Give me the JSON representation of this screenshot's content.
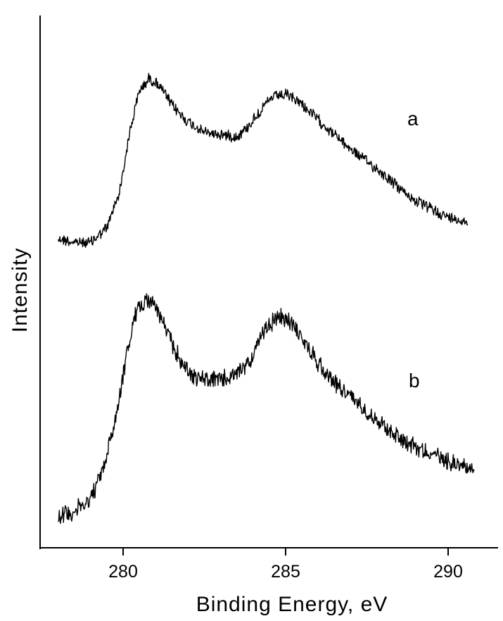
{
  "chart_data": {
    "type": "line",
    "xlabel": "Binding Energy, eV",
    "ylabel": "Intensity",
    "xlim": [
      277.5,
      291.5
    ],
    "xticks": [
      280,
      285,
      290
    ],
    "x_tick_labels": [
      "280",
      "285",
      "290"
    ],
    "y_ticks_shown": false,
    "series": [
      {
        "name": "a",
        "x": [
          278.0,
          278.5,
          279.0,
          279.5,
          279.9,
          280.2,
          280.5,
          280.8,
          281.1,
          281.5,
          282.0,
          282.5,
          283.0,
          283.5,
          283.8,
          284.2,
          284.6,
          285.0,
          285.4,
          286.0,
          286.5,
          287.0,
          287.5,
          288.0,
          288.5,
          289.0,
          289.5,
          290.0,
          290.6
        ],
        "y": [
          0.09,
          0.07,
          0.07,
          0.14,
          0.32,
          0.6,
          0.8,
          0.86,
          0.83,
          0.73,
          0.65,
          0.6,
          0.59,
          0.58,
          0.62,
          0.7,
          0.77,
          0.78,
          0.75,
          0.66,
          0.59,
          0.52,
          0.46,
          0.4,
          0.33,
          0.27,
          0.23,
          0.19,
          0.17
        ]
      },
      {
        "name": "b",
        "x": [
          278.0,
          278.5,
          279.0,
          279.4,
          279.8,
          280.1,
          280.4,
          280.7,
          281.0,
          281.4,
          281.8,
          282.2,
          282.6,
          283.0,
          283.5,
          284.0,
          284.4,
          284.8,
          285.2,
          285.6,
          286.0,
          286.5,
          287.0,
          287.5,
          288.0,
          288.5,
          289.0,
          289.5,
          290.0,
          290.8
        ],
        "y": [
          0.05,
          0.07,
          0.12,
          0.25,
          0.48,
          0.72,
          0.9,
          0.96,
          0.93,
          0.8,
          0.69,
          0.63,
          0.62,
          0.62,
          0.64,
          0.72,
          0.84,
          0.88,
          0.86,
          0.77,
          0.69,
          0.61,
          0.55,
          0.49,
          0.43,
          0.38,
          0.34,
          0.31,
          0.28,
          0.25
        ]
      }
    ]
  }
}
